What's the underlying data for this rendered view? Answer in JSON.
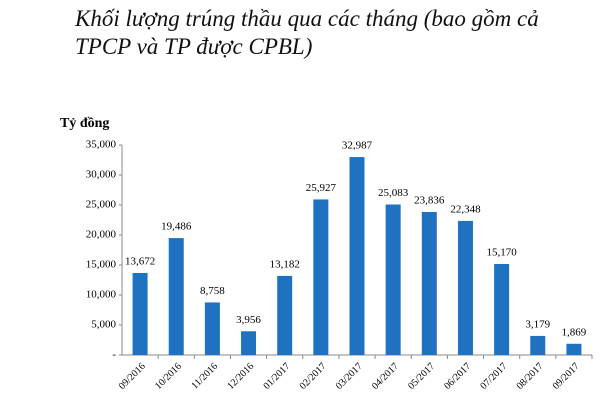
{
  "chart_data": {
    "type": "bar",
    "title": [
      "Khối lượng trúng thầu qua các tháng (bao gồm cả",
      "TPCP và TP được CPBL)"
    ],
    "y_label": "Tỷ đồng",
    "categories": [
      "09/2016",
      "10/2016",
      "11/2016",
      "12/2016",
      "01/2017",
      "02/2017",
      "03/2017",
      "04/2017",
      "05/2017",
      "06/2017",
      "07/2017",
      "08/2017",
      "09/2017"
    ],
    "values": [
      13672,
      19486,
      8758,
      3956,
      13182,
      25927,
      32987,
      25083,
      23836,
      22348,
      15170,
      3179,
      1869
    ],
    "value_labels": [
      "13,672",
      "19,486",
      "8,758",
      "3,956",
      "13,182",
      "25,927",
      "32,987",
      "25,083",
      "23,836",
      "22,348",
      "15,170",
      "3,179",
      "1,869"
    ],
    "color": "#1f72c0",
    "ylim": [
      0,
      35000
    ],
    "yticks": [
      {
        "value": 0,
        "label": "-"
      },
      {
        "value": 5000,
        "label": "5,000"
      },
      {
        "value": 10000,
        "label": "10,000"
      },
      {
        "value": 15000,
        "label": "15,000"
      },
      {
        "value": 20000,
        "label": "20,000"
      },
      {
        "value": 25000,
        "label": "25,000"
      },
      {
        "value": 30000,
        "label": "30,000"
      },
      {
        "value": 35000,
        "label": "35,000"
      }
    ],
    "grid": false
  }
}
